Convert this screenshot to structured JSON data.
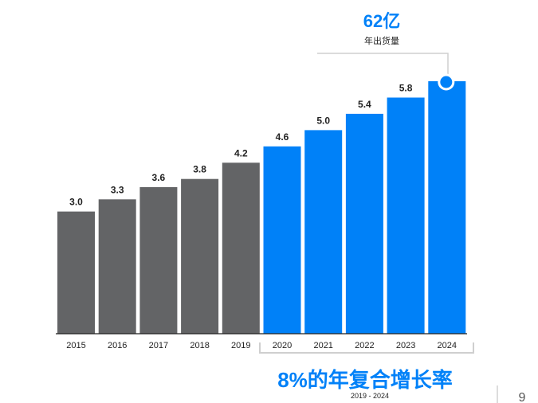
{
  "chart_data": {
    "type": "bar",
    "categories": [
      "2015",
      "2016",
      "2017",
      "2018",
      "2019",
      "2020",
      "2021",
      "2022",
      "2023",
      "2024"
    ],
    "values": [
      3.0,
      3.3,
      3.6,
      3.8,
      4.2,
      4.6,
      5.0,
      5.4,
      5.8,
      6.2
    ],
    "value_labels": [
      "3.0",
      "3.3",
      "3.6",
      "3.8",
      "4.2",
      "4.6",
      "5.0",
      "5.4",
      "5.8",
      ""
    ],
    "ylim": [
      0,
      6.2
    ],
    "grid": false,
    "highlight": {
      "value_text": "62亿",
      "caption": "年出货量"
    },
    "cagr": {
      "label": "8%的年复合增长率",
      "range": "2019 - 2024"
    }
  },
  "colors": {
    "historical": "#636466",
    "forecast": "#0081F8",
    "axis": "#222222",
    "label": "#222222",
    "bracket": "#cfcfcf"
  },
  "page_number": "9"
}
